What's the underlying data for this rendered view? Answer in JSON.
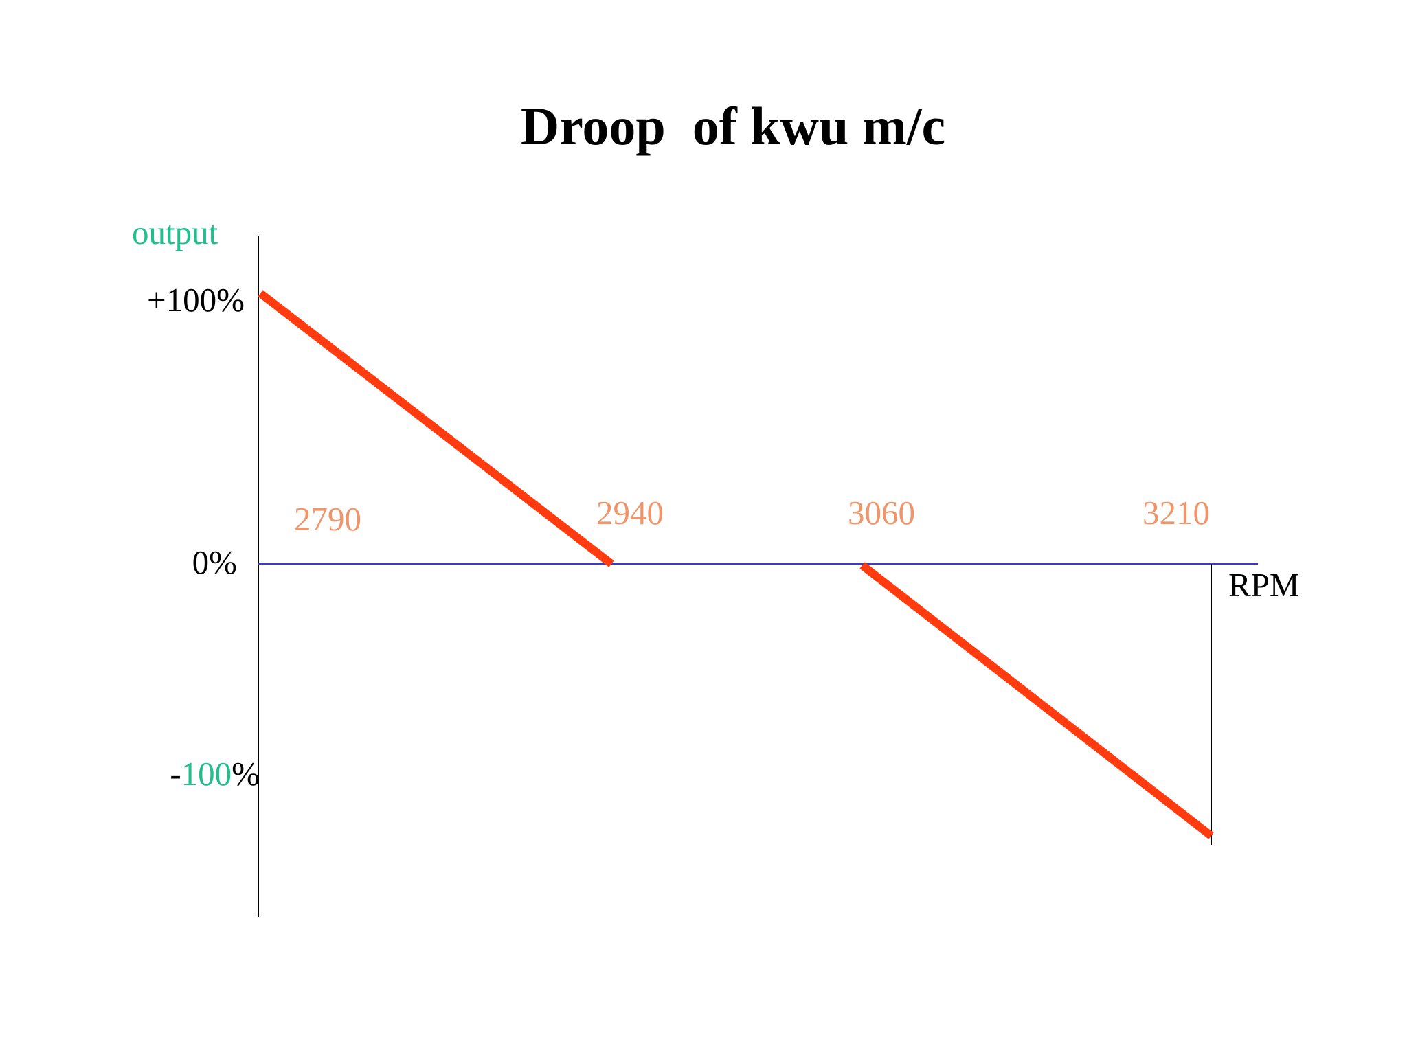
{
  "chart_data": {
    "type": "line",
    "title": "Droop  of kwu m/c",
    "ylabel": "output",
    "xlabel": "RPM",
    "x_tick_labels": [
      "2790",
      "2940",
      "3060",
      "3210"
    ],
    "y_tick_labels": [
      {
        "value": 100,
        "parts": [
          {
            "text": "+100%",
            "color": "#000000"
          }
        ]
      },
      {
        "value": 0,
        "parts": [
          {
            "text": "0%",
            "color": "#000000"
          }
        ]
      },
      {
        "value": -100,
        "parts": [
          {
            "text": "-",
            "color": "#000000"
          },
          {
            "text": "100",
            "color": "#1fbf8f"
          },
          {
            "text": "%",
            "color": "#000000"
          }
        ]
      }
    ],
    "series": [
      {
        "points": [
          {
            "x": 2790,
            "y": 100
          },
          {
            "x": 2940,
            "y": 0
          }
        ]
      },
      {
        "points": [
          {
            "x": 3060,
            "y": 0
          },
          {
            "x": 3210,
            "y": -100
          }
        ]
      }
    ],
    "grid": false,
    "colors": {
      "line": "#ff3b0f",
      "zero_line": "#3a3ad0",
      "axis": "#000000",
      "ylabel": "#1fbf8f",
      "x_tick": "#f0946a",
      "xlabel": "#000000"
    }
  }
}
